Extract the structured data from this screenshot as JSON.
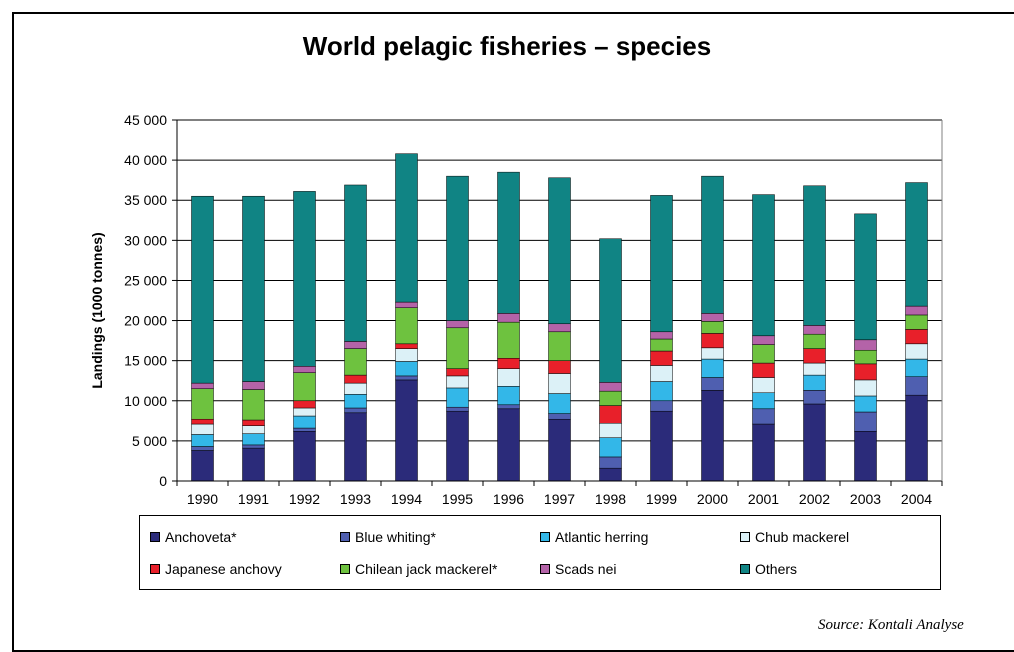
{
  "chart_data": {
    "type": "bar",
    "stacked": true,
    "title": "World pelagic fisheries – species",
    "xlabel": "",
    "ylabel": "Landings (1000 tonnes)",
    "ylim": [
      0,
      45000
    ],
    "yticks": [
      0,
      5000,
      10000,
      15000,
      20000,
      25000,
      30000,
      35000,
      40000,
      45000
    ],
    "ytick_labels": [
      "0",
      "5 000",
      "10 000",
      "15 000",
      "20 000",
      "25 000",
      "30 000",
      "35 000",
      "40 000",
      "45 000"
    ],
    "grid": true,
    "legend_position": "bottom",
    "categories": [
      "1990",
      "1991",
      "1992",
      "1993",
      "1994",
      "1995",
      "1996",
      "1997",
      "1998",
      "1999",
      "2000",
      "2001",
      "2002",
      "2003",
      "2004"
    ],
    "series": [
      {
        "name": "Anchoveta*",
        "color": "#2b2b7a",
        "values": [
          3800,
          4100,
          6200,
          8500,
          12600,
          8700,
          9000,
          7700,
          1600,
          8700,
          11300,
          7100,
          9600,
          6200,
          10700
        ]
      },
      {
        "name": "Blue whiting*",
        "color": "#4f5fb0",
        "values": [
          500,
          400,
          400,
          600,
          500,
          500,
          500,
          700,
          1400,
          1300,
          1600,
          1900,
          1700,
          2400,
          2300
        ]
      },
      {
        "name": "Atlantic herring",
        "color": "#33b7e8",
        "values": [
          1500,
          1400,
          1500,
          1700,
          1800,
          2400,
          2300,
          2500,
          2400,
          2400,
          2300,
          2000,
          1900,
          2000,
          2200
        ]
      },
      {
        "name": "Chub mackerel",
        "color": "#dcf1f7",
        "values": [
          1300,
          1000,
          1000,
          1400,
          1600,
          1500,
          2200,
          2500,
          1800,
          2000,
          1400,
          1900,
          1500,
          2000,
          1900
        ]
      },
      {
        "name": "Japanese anchovy",
        "color": "#e8202a",
        "values": [
          600,
          700,
          900,
          1000,
          600,
          900,
          1300,
          1600,
          2200,
          1800,
          1800,
          1800,
          1800,
          2000,
          1800
        ]
      },
      {
        "name": "Chilean jack mackerel*",
        "color": "#6ec23f",
        "values": [
          3800,
          3800,
          3500,
          3300,
          4500,
          5100,
          4500,
          3600,
          1800,
          1500,
          1500,
          2300,
          1800,
          1700,
          1800
        ]
      },
      {
        "name": "Scads nei",
        "color": "#b463a8",
        "values": [
          700,
          1000,
          800,
          900,
          700,
          900,
          1100,
          1000,
          1100,
          900,
          1000,
          1100,
          1100,
          1300,
          1100
        ]
      },
      {
        "name": "Others",
        "color": "#108484",
        "values": [
          23300,
          23100,
          21800,
          19500,
          18500,
          18000,
          17600,
          18200,
          17900,
          17000,
          17100,
          17600,
          17400,
          15700,
          15400
        ]
      }
    ]
  },
  "source": "Source: Kontali Analyse"
}
